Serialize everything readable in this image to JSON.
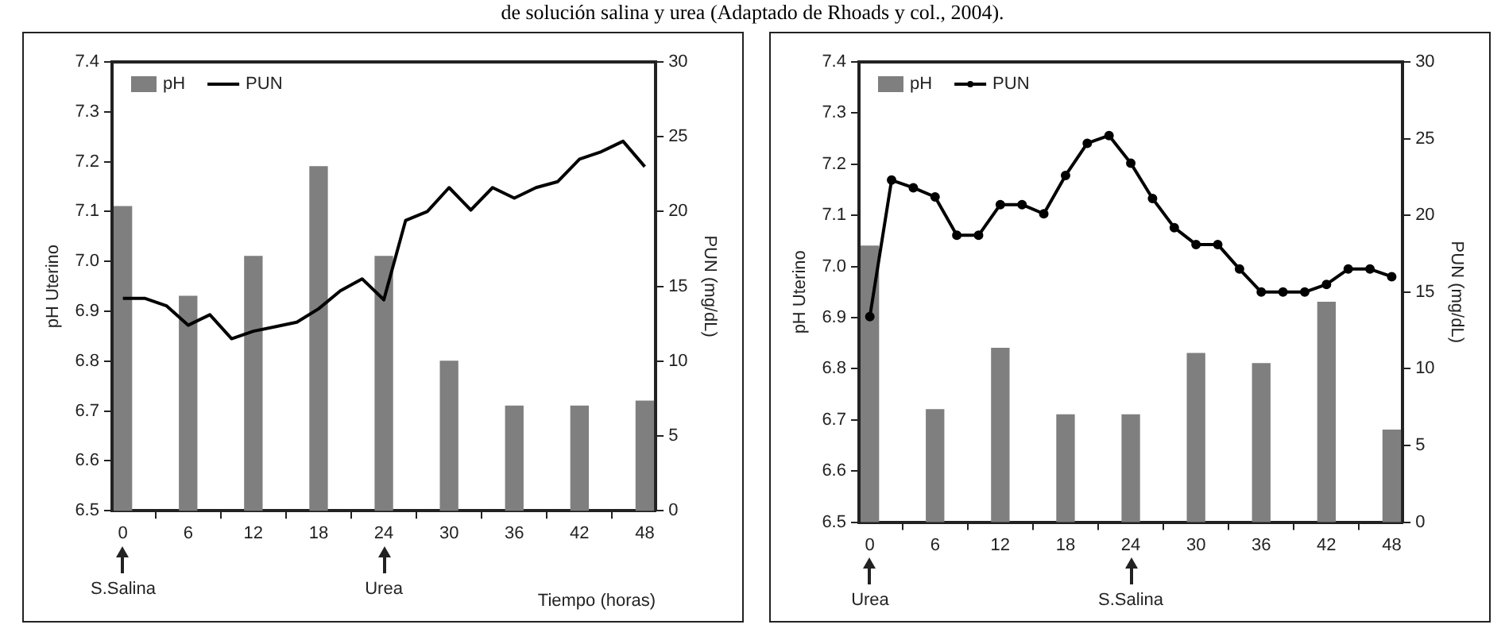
{
  "chart_data": [
    {
      "type": "bar",
      "title": "de solución salina y urea (Adaptado de Rhoads y col., 2004).",
      "xlabel": "Tiempo (horas)",
      "ylabel": "pH Uterino",
      "y2label": "PUN (mg/dL)",
      "series": [
        {
          "name": "pH",
          "color": "#7f7f7f",
          "x": [
            0,
            6,
            12,
            18,
            24,
            30,
            36,
            42,
            48
          ],
          "values": [
            7.11,
            6.93,
            7.01,
            7.19,
            7.01,
            6.8,
            6.71,
            6.71,
            6.72
          ]
        },
        {
          "name": "PUN",
          "type": "line",
          "axis": "y2",
          "color": "#000000",
          "x": [
            0,
            2,
            4,
            6,
            8,
            10,
            12,
            14,
            16,
            18,
            20,
            22,
            24,
            26,
            28,
            30,
            32,
            34,
            36,
            38,
            40,
            42,
            44,
            46,
            48
          ],
          "values": [
            14.2,
            14.2,
            13.7,
            12.4,
            13.1,
            11.5,
            12.0,
            12.3,
            12.6,
            13.5,
            14.7,
            15.5,
            14.1,
            19.4,
            20.0,
            21.6,
            20.1,
            21.6,
            20.9,
            21.6,
            22.0,
            23.5,
            24.0,
            24.7,
            23.0
          ]
        }
      ],
      "xlim": [
        -1,
        49
      ],
      "xticks": [
        0,
        6,
        12,
        18,
        24,
        30,
        36,
        42,
        48
      ],
      "ylim": [
        6.5,
        7.4
      ],
      "yticks": [
        6.5,
        6.6,
        6.7,
        6.8,
        6.9,
        {
          "value": 7,
          "label": "7.0"
        },
        7.1,
        7.2,
        7.3,
        7.4
      ],
      "y2lim": [
        0,
        30
      ],
      "y2ticks": [
        0,
        5,
        10,
        15,
        20,
        25,
        30
      ],
      "annotations": [
        "S.Salina",
        "Urea"
      ],
      "legend": "top left",
      "marker": "none",
      "line_style": "solid"
    },
    {
      "type": "bar",
      "ylabel": "pH Uterino",
      "y2label": "PUN (mg/dL)",
      "series": [
        {
          "name": "pH",
          "color": "#7f7f7f",
          "x": [
            0,
            6,
            12,
            18,
            24,
            30,
            36,
            42,
            48
          ],
          "values": [
            7.04,
            6.72,
            6.84,
            6.71,
            6.71,
            6.83,
            6.81,
            6.93,
            6.68
          ]
        },
        {
          "name": "PUN",
          "type": "line",
          "axis": "y2",
          "color": "#000000",
          "x": [
            0,
            2,
            4,
            6,
            8,
            10,
            12,
            14,
            16,
            18,
            20,
            22,
            24,
            26,
            28,
            30,
            32,
            34,
            36,
            38,
            40,
            42,
            44,
            46,
            48
          ],
          "values": [
            13.4,
            22.3,
            21.8,
            21.2,
            18.7,
            18.7,
            20.7,
            20.7,
            20.1,
            22.6,
            24.7,
            25.2,
            23.4,
            21.1,
            19.2,
            18.1,
            18.1,
            16.5,
            15.0,
            15.0,
            15.0,
            15.5,
            16.5,
            16.5,
            16.0
          ]
        }
      ],
      "xlim": [
        -1,
        49
      ],
      "xticks": [
        0,
        6,
        12,
        18,
        24,
        30,
        36,
        42,
        48
      ],
      "ylim": [
        6.5,
        7.4
      ],
      "yticks": [
        6.5,
        6.6,
        6.7,
        6.8,
        6.9,
        {
          "value": 7,
          "label": "7.0"
        },
        7.1,
        7.2,
        7.3,
        7.4
      ],
      "y2lim": [
        0,
        30
      ],
      "y2ticks": [
        0,
        5,
        10,
        15,
        20,
        25,
        30
      ],
      "annotations": [
        "Urea",
        "S.Salina"
      ],
      "legend": "top left",
      "marker": "circle",
      "line_style": "solid"
    }
  ]
}
